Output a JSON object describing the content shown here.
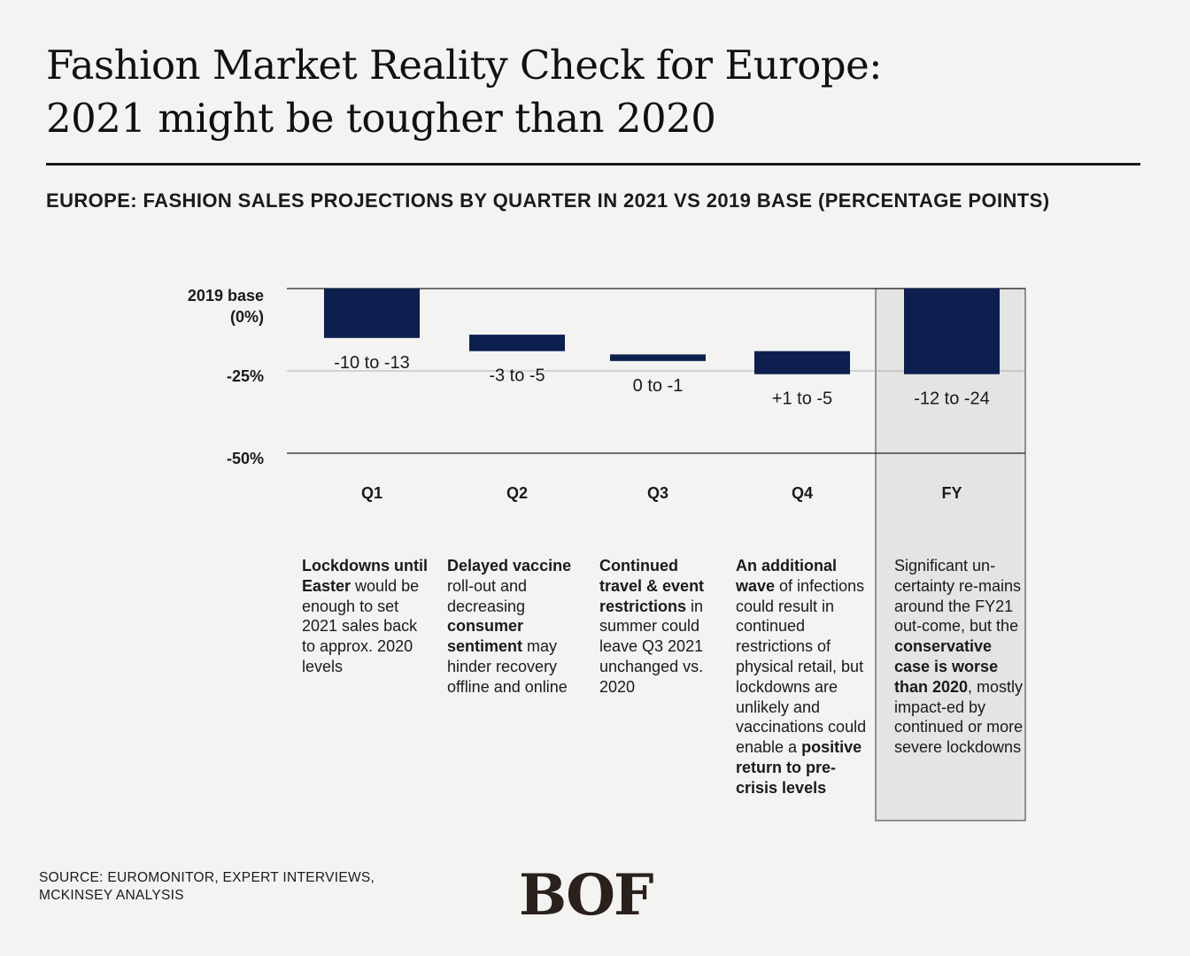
{
  "title": {
    "line1": "Fashion Market Reality Check for Europe:",
    "line2": "2021 might be tougher than 2020"
  },
  "subtitle": "EUROPE: FASHION SALES PROJECTIONS BY QUARTER IN 2021 VS 2019 BASE (PERCENTAGE POINTS)",
  "chart_data": {
    "type": "bar",
    "categories": [
      "Q1",
      "Q2",
      "Q3",
      "Q4",
      "FY"
    ],
    "bar_ranges": [
      [
        0,
        -15
      ],
      [
        -14,
        -19
      ],
      [
        -20,
        -22
      ],
      [
        -19,
        -26
      ],
      [
        0,
        -26
      ]
    ],
    "value_labels": [
      "-10 to -13",
      "-3 to -5",
      "0 to -1",
      "+1 to -5",
      "-12 to -24"
    ],
    "y_ticks": [
      {
        "value": 0,
        "label_line1": "2019 base",
        "label_line2": "(0%)"
      },
      {
        "value": -25,
        "label_line1": "-25%",
        "label_line2": ""
      },
      {
        "value": -50,
        "label_line1": "-50%",
        "label_line2": ""
      }
    ],
    "ylim": [
      -50,
      0
    ],
    "bar_color": "#0d1f4f",
    "highlight_category": "FY",
    "highlight_color": "#e4e4e3"
  },
  "notes": [
    [
      {
        "t": "Lockdowns until Easter",
        "b": true
      },
      {
        "t": " would be enough to set 2021 sales back to approx. 2020 levels",
        "b": false
      }
    ],
    [
      {
        "t": "Delayed vaccine",
        "b": true
      },
      {
        "t": " roll-out and decreasing ",
        "b": false
      },
      {
        "t": "consumer sentiment",
        "b": true
      },
      {
        "t": " may hinder recovery offline and online",
        "b": false
      }
    ],
    [
      {
        "t": "Continued travel & event restrictions",
        "b": true
      },
      {
        "t": " in summer could leave Q3 2021 unchanged vs. 2020",
        "b": false
      }
    ],
    [
      {
        "t": "An additional wave",
        "b": true
      },
      {
        "t": " of infections could result in continued restrictions of physical retail, but lockdowns are unlikely and vaccinations could enable a ",
        "b": false
      },
      {
        "t": "positive return to pre-crisis levels",
        "b": true
      }
    ],
    [
      {
        "t": "Significant un-certainty re-mains around the FY21 out-come, but the ",
        "b": false
      },
      {
        "t": "conservative case is worse than 2020",
        "b": true
      },
      {
        "t": ", mostly impact-ed by continued or more severe lockdowns",
        "b": false
      }
    ]
  ],
  "source": {
    "line1": "SOURCE: EUROMONITOR, EXPERT INTERVIEWS,",
    "line2": "MCKINSEY ANALYSIS"
  },
  "logo": "BOF"
}
